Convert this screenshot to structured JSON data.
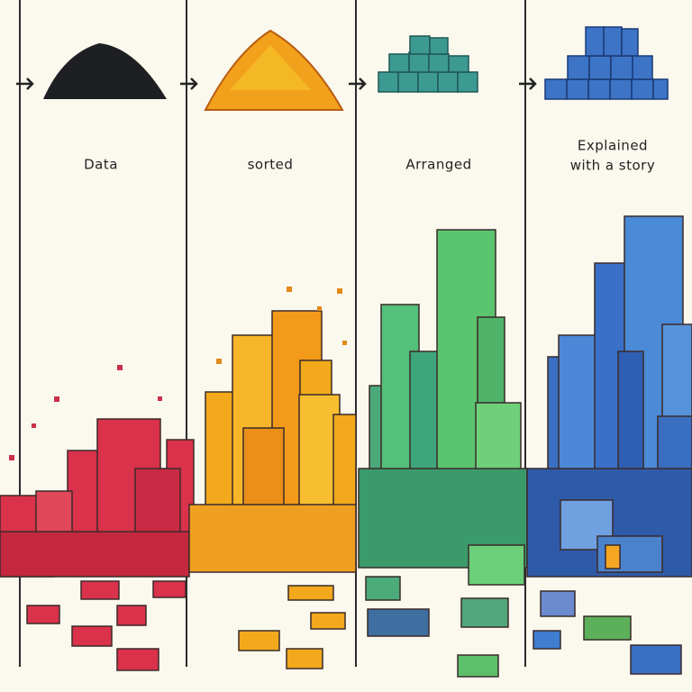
{
  "panels": [
    {
      "label_lines": [
        "Data"
      ]
    },
    {
      "label_lines": [
        "sorted"
      ]
    },
    {
      "label_lines": [
        "Arranged"
      ]
    },
    {
      "label_lines": [
        "Explained",
        "with a story"
      ]
    }
  ]
}
